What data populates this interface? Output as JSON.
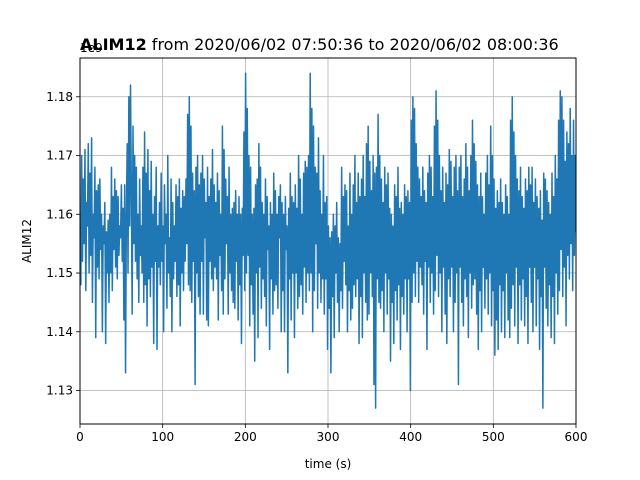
{
  "chart_data": {
    "type": "line",
    "title_bold": "ALIM12",
    "title_rest": " from 2020/06/02 07:50:36 to 2020/06/02 08:00:36",
    "xlabel": "time (s)",
    "ylabel": "ALIM12",
    "y_offset_label": "1e9",
    "xlim": [
      0,
      600
    ],
    "ylim": [
      1.1243,
      1.1866
    ],
    "x_ticks": [
      0,
      100,
      200,
      300,
      400,
      500,
      600
    ],
    "x_tick_labels": [
      "0",
      "100",
      "200",
      "300",
      "400",
      "500",
      "600"
    ],
    "y_ticks": [
      1.13,
      1.14,
      1.15,
      1.16,
      1.17,
      1.18
    ],
    "y_tick_labels": [
      "1.13",
      "1.14",
      "1.15",
      "1.16",
      "1.17",
      "1.18"
    ],
    "grid": true,
    "legend": false,
    "series": [
      {
        "color": "#1f77b4",
        "x_start": 0,
        "x_step": 1,
        "values": [
          1.16,
          1.148,
          1.17,
          1.152,
          1.166,
          1.155,
          1.171,
          1.147,
          1.162,
          1.158,
          1.172,
          1.15,
          1.167,
          1.153,
          1.173,
          1.145,
          1.16,
          1.156,
          1.168,
          1.139,
          1.164,
          1.151,
          1.165,
          1.149,
          1.166,
          1.154,
          1.16,
          1.14,
          1.158,
          1.155,
          1.162,
          1.138,
          1.157,
          1.15,
          1.159,
          1.145,
          1.16,
          1.15,
          1.168,
          1.147,
          1.163,
          1.154,
          1.166,
          1.151,
          1.164,
          1.149,
          1.163,
          1.153,
          1.158,
          1.156,
          1.165,
          1.152,
          1.161,
          1.142,
          1.165,
          1.133,
          1.16,
          1.172,
          1.15,
          1.18,
          1.158,
          1.182,
          1.164,
          1.143,
          1.175,
          1.155,
          1.17,
          1.152,
          1.168,
          1.149,
          1.16,
          1.145,
          1.166,
          1.153,
          1.158,
          1.15,
          1.168,
          1.145,
          1.174,
          1.148,
          1.167,
          1.141,
          1.171,
          1.149,
          1.164,
          1.146,
          1.169,
          1.151,
          1.16,
          1.138,
          1.163,
          1.152,
          1.168,
          1.137,
          1.158,
          1.151,
          1.162,
          1.148,
          1.167,
          1.152,
          1.158,
          1.14,
          1.165,
          1.155,
          1.16,
          1.144,
          1.17,
          1.15,
          1.156,
          1.146,
          1.166,
          1.14,
          1.162,
          1.149,
          1.158,
          1.152,
          1.165,
          1.146,
          1.163,
          1.148,
          1.166,
          1.141,
          1.161,
          1.15,
          1.164,
          1.147,
          1.163,
          1.152,
          1.166,
          1.155,
          1.177,
          1.148,
          1.18,
          1.147,
          1.175,
          1.145,
          1.167,
          1.152,
          1.164,
          1.131,
          1.168,
          1.15,
          1.17,
          1.146,
          1.165,
          1.143,
          1.167,
          1.152,
          1.17,
          1.143,
          1.166,
          1.156,
          1.162,
          1.142,
          1.168,
          1.141,
          1.163,
          1.152,
          1.166,
          1.149,
          1.171,
          1.147,
          1.165,
          1.151,
          1.162,
          1.149,
          1.167,
          1.142,
          1.164,
          1.153,
          1.16,
          1.147,
          1.175,
          1.143,
          1.171,
          1.149,
          1.166,
          1.155,
          1.163,
          1.143,
          1.168,
          1.15,
          1.16,
          1.147,
          1.161,
          1.145,
          1.162,
          1.144,
          1.164,
          1.152,
          1.16,
          1.142,
          1.163,
          1.148,
          1.16,
          1.138,
          1.161,
          1.153,
          1.174,
          1.147,
          1.184,
          1.15,
          1.178,
          1.153,
          1.17,
          1.141,
          1.168,
          1.148,
          1.16,
          1.143,
          1.161,
          1.135,
          1.165,
          1.15,
          1.166,
          1.139,
          1.172,
          1.151,
          1.168,
          1.144,
          1.162,
          1.149,
          1.16,
          1.146,
          1.166,
          1.141,
          1.163,
          1.154,
          1.158,
          1.137,
          1.162,
          1.149,
          1.16,
          1.143,
          1.167,
          1.147,
          1.164,
          1.148,
          1.16,
          1.144,
          1.163,
          1.156,
          1.165,
          1.14,
          1.162,
          1.147,
          1.16,
          1.14,
          1.163,
          1.154,
          1.158,
          1.133,
          1.161,
          1.149,
          1.167,
          1.142,
          1.163,
          1.15,
          1.162,
          1.139,
          1.165,
          1.15,
          1.161,
          1.144,
          1.17,
          1.146,
          1.166,
          1.148,
          1.16,
          1.143,
          1.167,
          1.151,
          1.169,
          1.145,
          1.168,
          1.15,
          1.17,
          1.147,
          1.184,
          1.15,
          1.178,
          1.14,
          1.175,
          1.147,
          1.168,
          1.155,
          1.167,
          1.144,
          1.173,
          1.15,
          1.164,
          1.145,
          1.16,
          1.149,
          1.17,
          1.143,
          1.162,
          1.149,
          1.163,
          1.137,
          1.158,
          1.144,
          1.156,
          1.133,
          1.157,
          1.146,
          1.16,
          1.139,
          1.158,
          1.15,
          1.162,
          1.145,
          1.156,
          1.14,
          1.155,
          1.147,
          1.168,
          1.144,
          1.163,
          1.152,
          1.165,
          1.148,
          1.164,
          1.14,
          1.158,
          1.147,
          1.167,
          1.142,
          1.16,
          1.144,
          1.165,
          1.148,
          1.17,
          1.146,
          1.162,
          1.149,
          1.167,
          1.138,
          1.163,
          1.146,
          1.166,
          1.139,
          1.17,
          1.15,
          1.163,
          1.145,
          1.172,
          1.142,
          1.175,
          1.143,
          1.169,
          1.15,
          1.164,
          1.146,
          1.17,
          1.131,
          1.167,
          1.127,
          1.168,
          1.149,
          1.177,
          1.145,
          1.17,
          1.144,
          1.166,
          1.147,
          1.162,
          1.14,
          1.168,
          1.15,
          1.165,
          1.143,
          1.167,
          1.149,
          1.161,
          1.135,
          1.16,
          1.145,
          1.158,
          1.138,
          1.165,
          1.147,
          1.163,
          1.142,
          1.168,
          1.148,
          1.161,
          1.137,
          1.162,
          1.146,
          1.16,
          1.143,
          1.165,
          1.149,
          1.163,
          1.14,
          1.164,
          1.149,
          1.162,
          1.13,
          1.176,
          1.145,
          1.18,
          1.15,
          1.178,
          1.146,
          1.172,
          1.152,
          1.168,
          1.145,
          1.166,
          1.151,
          1.163,
          1.148,
          1.168,
          1.143,
          1.164,
          1.152,
          1.162,
          1.137,
          1.167,
          1.151,
          1.17,
          1.145,
          1.168,
          1.15,
          1.163,
          1.143,
          1.175,
          1.147,
          1.181,
          1.153,
          1.176,
          1.146,
          1.17,
          1.15,
          1.164,
          1.14,
          1.168,
          1.151,
          1.162,
          1.143,
          1.167,
          1.138,
          1.165,
          1.149,
          1.171,
          1.146,
          1.169,
          1.151,
          1.163,
          1.14,
          1.168,
          1.145,
          1.17,
          1.15,
          1.164,
          1.131,
          1.168,
          1.151,
          1.17,
          1.145,
          1.163,
          1.141,
          1.166,
          1.149,
          1.172,
          1.146,
          1.168,
          1.139,
          1.164,
          1.15,
          1.17,
          1.144,
          1.176,
          1.148,
          1.172,
          1.149,
          1.169,
          1.143,
          1.165,
          1.137,
          1.163,
          1.147,
          1.167,
          1.14,
          1.163,
          1.151,
          1.16,
          1.144,
          1.167,
          1.149,
          1.17,
          1.143,
          1.165,
          1.15,
          1.175,
          1.141,
          1.17,
          1.147,
          1.166,
          1.136,
          1.161,
          1.142,
          1.164,
          1.137,
          1.162,
          1.148,
          1.166,
          1.14,
          1.162,
          1.147,
          1.16,
          1.139,
          1.165,
          1.15,
          1.163,
          1.142,
          1.16,
          1.139,
          1.176,
          1.144,
          1.18,
          1.148,
          1.174,
          1.141,
          1.17,
          1.151,
          1.166,
          1.138,
          1.164,
          1.148,
          1.168,
          1.142,
          1.163,
          1.149,
          1.161,
          1.141,
          1.166,
          1.146,
          1.164,
          1.138,
          1.168,
          1.151,
          1.165,
          1.145,
          1.168,
          1.14,
          1.162,
          1.151,
          1.166,
          1.141,
          1.163,
          1.149,
          1.161,
          1.137,
          1.164,
          1.146,
          1.159,
          1.127,
          1.167,
          1.151,
          1.166,
          1.144,
          1.164,
          1.141,
          1.162,
          1.148,
          1.16,
          1.139,
          1.167,
          1.146,
          1.163,
          1.138,
          1.17,
          1.15,
          1.166,
          1.143,
          1.176,
          1.147,
          1.181,
          1.154,
          1.18,
          1.146,
          1.176,
          1.151,
          1.169,
          1.141,
          1.174,
          1.153,
          1.172,
          1.149,
          1.178,
          1.155,
          1.17,
          1.147,
          1.176,
          1.153,
          1.17,
          1.157
        ]
      }
    ]
  }
}
